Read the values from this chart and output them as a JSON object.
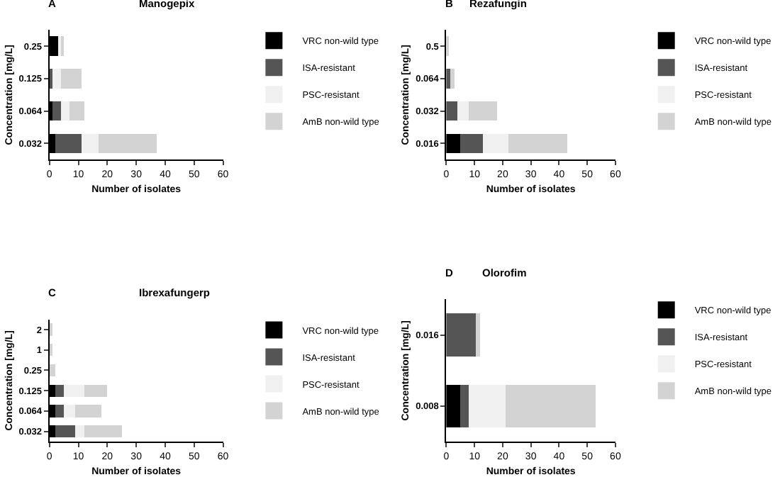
{
  "chart_data": [
    {
      "type": "bar",
      "orientation": "horizontal",
      "stacked": true,
      "title": "Manogepix",
      "annotations": [
        "A"
      ],
      "xlabel": "Number of isolates",
      "ylabel": "Concentration [mg/L]",
      "categories": [
        "0.25",
        "0.125",
        "0.064",
        "0.032"
      ],
      "xlim": [
        0,
        60
      ],
      "xticks": [
        0,
        10,
        20,
        30,
        40,
        50,
        60
      ],
      "legend": "right",
      "series": [
        {
          "name": "VRC non-wild type",
          "color": "#000000",
          "values": [
            3,
            0,
            1,
            2
          ]
        },
        {
          "name": "ISA-resistant",
          "color": "#555555",
          "values": [
            0,
            1,
            3,
            9
          ]
        },
        {
          "name": "PSC-resistant",
          "color": "#f0f0f0",
          "values": [
            1,
            3,
            3,
            6
          ]
        },
        {
          "name": "AmB non-wild type",
          "color": "#d3d3d3",
          "values": [
            1,
            7,
            5,
            20
          ]
        }
      ]
    },
    {
      "type": "bar",
      "orientation": "horizontal",
      "stacked": true,
      "title": "Rezafungin",
      "annotations": [
        "B"
      ],
      "xlabel": "Number of isolates",
      "ylabel": "Concentration [mg/L]",
      "categories": [
        "0.5",
        "0.064",
        "0.032",
        "0.016"
      ],
      "xlim": [
        0,
        60
      ],
      "xticks": [
        0,
        10,
        20,
        30,
        40,
        50,
        60
      ],
      "legend": "right",
      "series": [
        {
          "name": "VRC non-wild type",
          "color": "#000000",
          "values": [
            0,
            0,
            0,
            5
          ]
        },
        {
          "name": "ISA-resistant",
          "color": "#555555",
          "values": [
            0,
            2,
            4,
            8
          ]
        },
        {
          "name": "PSC-resistant",
          "color": "#f0f0f0",
          "values": [
            0,
            0,
            4,
            9
          ]
        },
        {
          "name": "AmB non-wild type",
          "color": "#d3d3d3",
          "values": [
            1,
            1,
            10,
            21
          ]
        }
      ]
    },
    {
      "type": "bar",
      "orientation": "horizontal",
      "stacked": true,
      "title": "Ibrexafungerp",
      "annotations": [
        "C"
      ],
      "xlabel": "Number of isolates",
      "ylabel": "Concentration [mg/L]",
      "categories": [
        "2",
        "1",
        "0.25",
        "0.125",
        "0.064",
        "0.032"
      ],
      "xlim": [
        0,
        60
      ],
      "xticks": [
        0,
        10,
        20,
        30,
        40,
        50,
        60
      ],
      "legend": "right",
      "series": [
        {
          "name": "VRC non-wild type",
          "color": "#000000",
          "values": [
            0,
            0,
            0,
            2,
            2,
            2
          ]
        },
        {
          "name": "ISA-resistant",
          "color": "#555555",
          "values": [
            0,
            0,
            0,
            3,
            3,
            7
          ]
        },
        {
          "name": "PSC-resistant",
          "color": "#f0f0f0",
          "values": [
            0,
            0,
            0,
            7,
            4,
            3
          ]
        },
        {
          "name": "AmB non-wild type",
          "color": "#d3d3d3",
          "values": [
            1,
            1,
            2,
            8,
            9,
            13
          ]
        }
      ]
    },
    {
      "type": "bar",
      "orientation": "horizontal",
      "stacked": true,
      "title": "Olorofim",
      "annotations": [
        "D"
      ],
      "xlabel": "Number of isolates",
      "ylabel": "Concentration [mg/L]",
      "categories": [
        "0.016",
        "0.008"
      ],
      "xlim": [
        0,
        60
      ],
      "xticks": [
        0,
        10,
        20,
        30,
        40,
        50,
        60
      ],
      "legend": "right",
      "series": [
        {
          "name": "VRC non-wild type",
          "color": "#000000",
          "values": [
            0,
            5
          ]
        },
        {
          "name": "ISA-resistant",
          "color": "#555555",
          "values": [
            11,
            3
          ]
        },
        {
          "name": "PSC-resistant",
          "color": "#f0f0f0",
          "values": [
            0,
            13
          ]
        },
        {
          "name": "AmB non-wild type",
          "color": "#d3d3d3",
          "values": [
            1,
            32
          ]
        }
      ]
    }
  ]
}
